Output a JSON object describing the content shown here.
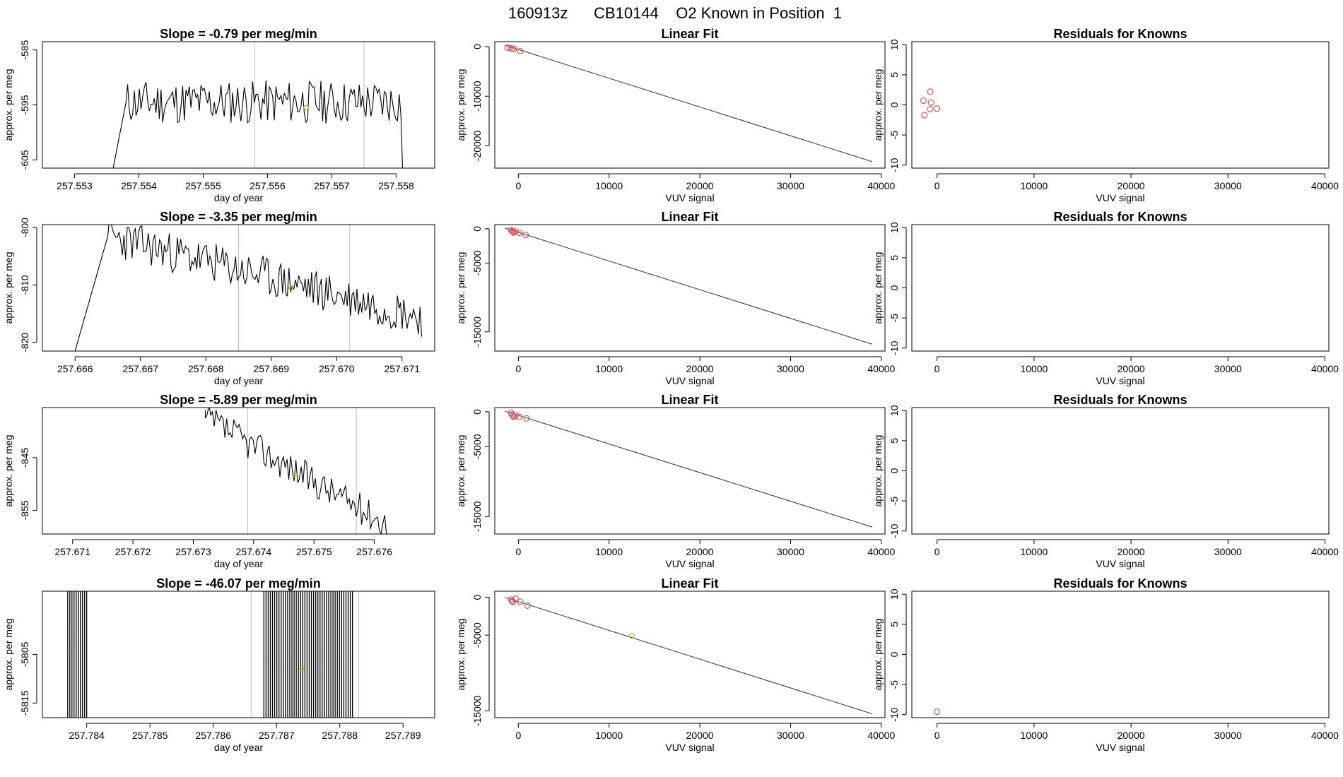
{
  "header": {
    "title": "160913z      CB10144    O2 Known in Position  1"
  },
  "chart_data": [
    {
      "type": "line",
      "row": 1,
      "col": 1,
      "title": "Slope =  -0.79  per meg/min",
      "xlabel": "day of year",
      "ylabel": "approx. per meg",
      "xlim": [
        257.5525,
        257.5586
      ],
      "ylim": [
        -606.5,
        -583.5
      ],
      "xticks": [
        257.553,
        257.554,
        257.555,
        257.556,
        257.557,
        257.558
      ],
      "xtick_labels": [
        "257.553",
        "257.554",
        "257.555",
        "257.556",
        "257.557",
        "257.558"
      ],
      "yticks": [
        -605,
        -595,
        -585
      ],
      "ytick_labels": [
        "-605",
        "-595",
        "-585"
      ],
      "vlines": [
        257.5558,
        257.5575
      ],
      "marker": {
        "x": 257.5566,
        "y": -595.5
      },
      "trace": {
        "start": 257.5536,
        "end": 257.5582,
        "level_start": -606.5,
        "mean": -594.5,
        "amp": 4.0,
        "trend": 0,
        "seed": 11,
        "entry": 257.5538,
        "exit": 257.5581,
        "exit_level": -606.5
      }
    },
    {
      "type": "scatter",
      "row": 1,
      "col": 2,
      "title": "Linear Fit",
      "xlabel": "VUV signal",
      "ylabel": "approx. per meg",
      "xlim": [
        -2600,
        40400
      ],
      "ylim": [
        -24500,
        1000
      ],
      "xticks": [
        0,
        10000,
        20000,
        30000,
        40000
      ],
      "xtick_labels": [
        "0",
        "10000",
        "20000",
        "30000",
        "40000"
      ],
      "yticks": [
        -20000,
        -10000,
        0
      ],
      "ytick_labels": [
        "-20000",
        "-10000",
        "0"
      ],
      "fit_line": {
        "x": [
          -1500,
          39000
        ],
        "y": [
          300,
          -23200
        ]
      },
      "points": [
        [
          -1200,
          -200
        ],
        [
          -900,
          -300
        ],
        [
          -700,
          -400
        ],
        [
          -500,
          -450
        ],
        [
          200,
          -900
        ]
      ],
      "highlight": []
    },
    {
      "type": "scatter",
      "row": 1,
      "col": 3,
      "title": "Residuals for Knowns",
      "xlabel": "VUV signal",
      "ylabel": "approx. per meg",
      "xlim": [
        -2600,
        40400
      ],
      "ylim": [
        -10.5,
        10.5
      ],
      "xticks": [
        0,
        10000,
        20000,
        30000,
        40000
      ],
      "xtick_labels": [
        "0",
        "10000",
        "20000",
        "30000",
        "40000"
      ],
      "yticks": [
        -10,
        -5,
        0,
        5,
        10
      ],
      "ytick_labels": [
        "-10",
        "-5",
        "0",
        "5",
        "10"
      ],
      "points": [
        [
          -1400,
          0.7
        ],
        [
          -700,
          2.2
        ],
        [
          -600,
          0.4
        ],
        [
          -1300,
          -1.7
        ],
        [
          -700,
          -0.7
        ],
        [
          0,
          -0.6
        ]
      ]
    },
    {
      "type": "line",
      "row": 2,
      "col": 1,
      "title": "Slope =  -3.35  per meg/min",
      "xlabel": "day of year",
      "ylabel": "approx. per meg",
      "xlim": [
        257.6655,
        257.6715
      ],
      "ylim": [
        -821.5,
        -799.5
      ],
      "xticks": [
        257.666,
        257.667,
        257.668,
        257.669,
        257.67,
        257.671
      ],
      "xtick_labels": [
        "257.666",
        "257.667",
        "257.668",
        "257.669",
        "257.670",
        "257.671"
      ],
      "yticks": [
        -820,
        -810,
        -800
      ],
      "ytick_labels": [
        "-820",
        "-810",
        "-800"
      ],
      "vlines": [
        257.6685,
        257.6702
      ],
      "marker": {
        "x": 257.6693,
        "y": -810.5
      },
      "trace": {
        "start": 257.666,
        "end": 257.6713,
        "level_start": -821.5,
        "mean": -801.5,
        "amp": 3.5,
        "trend": -14,
        "seed": 23,
        "entry": 257.6665,
        "exit": 257.6713,
        "exit_level": -819
      }
    },
    {
      "type": "scatter",
      "row": 2,
      "col": 2,
      "title": "Linear Fit",
      "xlabel": "VUV signal",
      "ylabel": "approx. per meg",
      "xlim": [
        -2600,
        40400
      ],
      "ylim": [
        -17800,
        600
      ],
      "xticks": [
        0,
        10000,
        20000,
        30000,
        40000
      ],
      "xtick_labels": [
        "0",
        "10000",
        "20000",
        "30000",
        "40000"
      ],
      "yticks": [
        -15000,
        -5000,
        0
      ],
      "ytick_labels": [
        "-15000",
        "-5000",
        "0"
      ],
      "fit_line": {
        "x": [
          -1500,
          39000
        ],
        "y": [
          100,
          -16800
        ]
      },
      "points": [
        [
          -800,
          -200
        ],
        [
          -700,
          -350
        ],
        [
          -600,
          -450
        ],
        [
          -500,
          -550
        ],
        [
          -300,
          -400
        ],
        [
          100,
          -600
        ],
        [
          800,
          -900
        ]
      ],
      "highlight": []
    },
    {
      "type": "scatter",
      "row": 2,
      "col": 3,
      "title": "Residuals for Knowns",
      "xlabel": "VUV signal",
      "ylabel": "approx. per meg",
      "xlim": [
        -2600,
        40400
      ],
      "ylim": [
        -10.5,
        10.5
      ],
      "xticks": [
        0,
        10000,
        20000,
        30000,
        40000
      ],
      "xtick_labels": [
        "0",
        "10000",
        "20000",
        "30000",
        "40000"
      ],
      "yticks": [
        -10,
        -5,
        0,
        5,
        10
      ],
      "ytick_labels": [
        "-10",
        "-5",
        "0",
        "5",
        "10"
      ],
      "points": []
    },
    {
      "type": "line",
      "row": 3,
      "col": 1,
      "title": "Slope =  -5.89  per meg/min",
      "xlabel": "day of year",
      "ylabel": "approx. per meg",
      "xlim": [
        257.6705,
        257.677
      ],
      "ylim": [
        -859.5,
        -835.5
      ],
      "xticks": [
        257.671,
        257.672,
        257.673,
        257.674,
        257.675,
        257.676
      ],
      "xtick_labels": [
        "257.671",
        "257.672",
        "257.673",
        "257.674",
        "257.675",
        "257.676"
      ],
      "yticks": [
        -855,
        -845
      ],
      "ytick_labels": [
        "-855",
        "-845"
      ],
      "vlines": [
        257.6739,
        257.6757
      ],
      "marker": {
        "x": 257.6747,
        "y": -848.5
      },
      "trace": {
        "start": 257.6732,
        "end": 257.6762,
        "level_start": -836,
        "mean": -837.5,
        "amp": 3.0,
        "trend": -20,
        "seed": 37,
        "entry": 257.6732,
        "exit": 257.6762,
        "exit_level": -859.5
      }
    },
    {
      "type": "scatter",
      "row": 3,
      "col": 2,
      "title": "Linear Fit",
      "xlabel": "VUV signal",
      "ylabel": "approx. per meg",
      "xlim": [
        -2600,
        40400
      ],
      "ylim": [
        -17500,
        600
      ],
      "xticks": [
        0,
        10000,
        20000,
        30000,
        40000
      ],
      "xtick_labels": [
        "0",
        "10000",
        "20000",
        "30000",
        "40000"
      ],
      "yticks": [
        -15000,
        -5000,
        0
      ],
      "ytick_labels": [
        "-15000",
        "-5000",
        "0"
      ],
      "fit_line": {
        "x": [
          -1500,
          39000
        ],
        "y": [
          100,
          -16500
        ]
      },
      "points": [
        [
          -800,
          -150
        ],
        [
          -700,
          -400
        ],
        [
          -600,
          -600
        ],
        [
          -500,
          -750
        ],
        [
          -300,
          -500
        ],
        [
          100,
          -700
        ],
        [
          900,
          -950
        ]
      ],
      "highlight": []
    },
    {
      "type": "scatter",
      "row": 3,
      "col": 3,
      "title": "Residuals for Knowns",
      "xlabel": "VUV signal",
      "ylabel": "approx. per meg",
      "xlim": [
        -2600,
        40400
      ],
      "ylim": [
        -10.5,
        10.5
      ],
      "xticks": [
        0,
        10000,
        20000,
        30000,
        40000
      ],
      "xtick_labels": [
        "0",
        "10000",
        "20000",
        "30000",
        "40000"
      ],
      "yticks": [
        -10,
        -5,
        0,
        5,
        10
      ],
      "ytick_labels": [
        "-10",
        "-5",
        "0",
        "5",
        "10"
      ],
      "points": []
    },
    {
      "type": "line",
      "row": 4,
      "col": 1,
      "title": "Slope =  -46.07  per meg/min",
      "xlabel": "day of year",
      "ylabel": "approx. per meg",
      "xlim": [
        257.7833,
        257.7895
      ],
      "ylim": [
        -5818,
        -5792
      ],
      "xticks": [
        257.784,
        257.785,
        257.786,
        257.787,
        257.788,
        257.789
      ],
      "xtick_labels": [
        "257.784",
        "257.785",
        "257.786",
        "257.787",
        "257.788",
        "257.789"
      ],
      "yticks": [
        -5815,
        -5805
      ],
      "ytick_labels": [
        "-5815",
        "-5805"
      ],
      "vlines": [
        257.7866,
        257.7883
      ],
      "marker": {
        "x": 257.7874,
        "y": -5808
      },
      "spikes": [
        {
          "start": 257.7837,
          "end": 257.784,
          "count": 10,
          "low": [
            -5800,
            -5818
          ]
        },
        {
          "start": 257.7868,
          "end": 257.7882,
          "count": 42,
          "low": [
            -5804,
            -5818
          ]
        }
      ]
    },
    {
      "type": "scatter",
      "row": 4,
      "col": 2,
      "title": "Linear Fit",
      "xlabel": "VUV signal",
      "ylabel": "approx. per meg",
      "xlim": [
        -2600,
        40400
      ],
      "ylim": [
        -15900,
        800
      ],
      "xticks": [
        0,
        10000,
        20000,
        30000,
        40000
      ],
      "xtick_labels": [
        "0",
        "10000",
        "20000",
        "30000",
        "40000"
      ],
      "yticks": [
        -15000,
        -5000,
        0
      ],
      "ytick_labels": [
        "-15000",
        "-5000",
        "0"
      ],
      "fit_line": {
        "x": [
          -1500,
          39000
        ],
        "y": [
          0,
          -15400
        ]
      },
      "points": [
        [
          -800,
          -300
        ],
        [
          -700,
          -500
        ],
        [
          -600,
          -600
        ],
        [
          -300,
          -200
        ],
        [
          200,
          -600
        ],
        [
          1000,
          -1100
        ]
      ],
      "highlight": [
        [
          12500,
          -5100
        ]
      ]
    },
    {
      "type": "scatter",
      "row": 4,
      "col": 3,
      "title": "Residuals for Knowns",
      "xlabel": "VUV signal",
      "ylabel": "approx. per meg",
      "xlim": [
        -2600,
        40400
      ],
      "ylim": [
        -10.5,
        10.5
      ],
      "xticks": [
        0,
        10000,
        20000,
        30000,
        40000
      ],
      "xtick_labels": [
        "0",
        "10000",
        "20000",
        "30000",
        "40000"
      ],
      "yticks": [
        -10,
        -5,
        0,
        5,
        10
      ],
      "ytick_labels": [
        "-10",
        "-5",
        "0",
        "5",
        "10"
      ],
      "points": [
        [
          0,
          -9.5
        ]
      ]
    }
  ],
  "colors": {
    "axis": "#000000",
    "trace": "#000000",
    "vline": "#bdbdbd",
    "point": "#cd5c5c",
    "marker": "#f0a030"
  }
}
